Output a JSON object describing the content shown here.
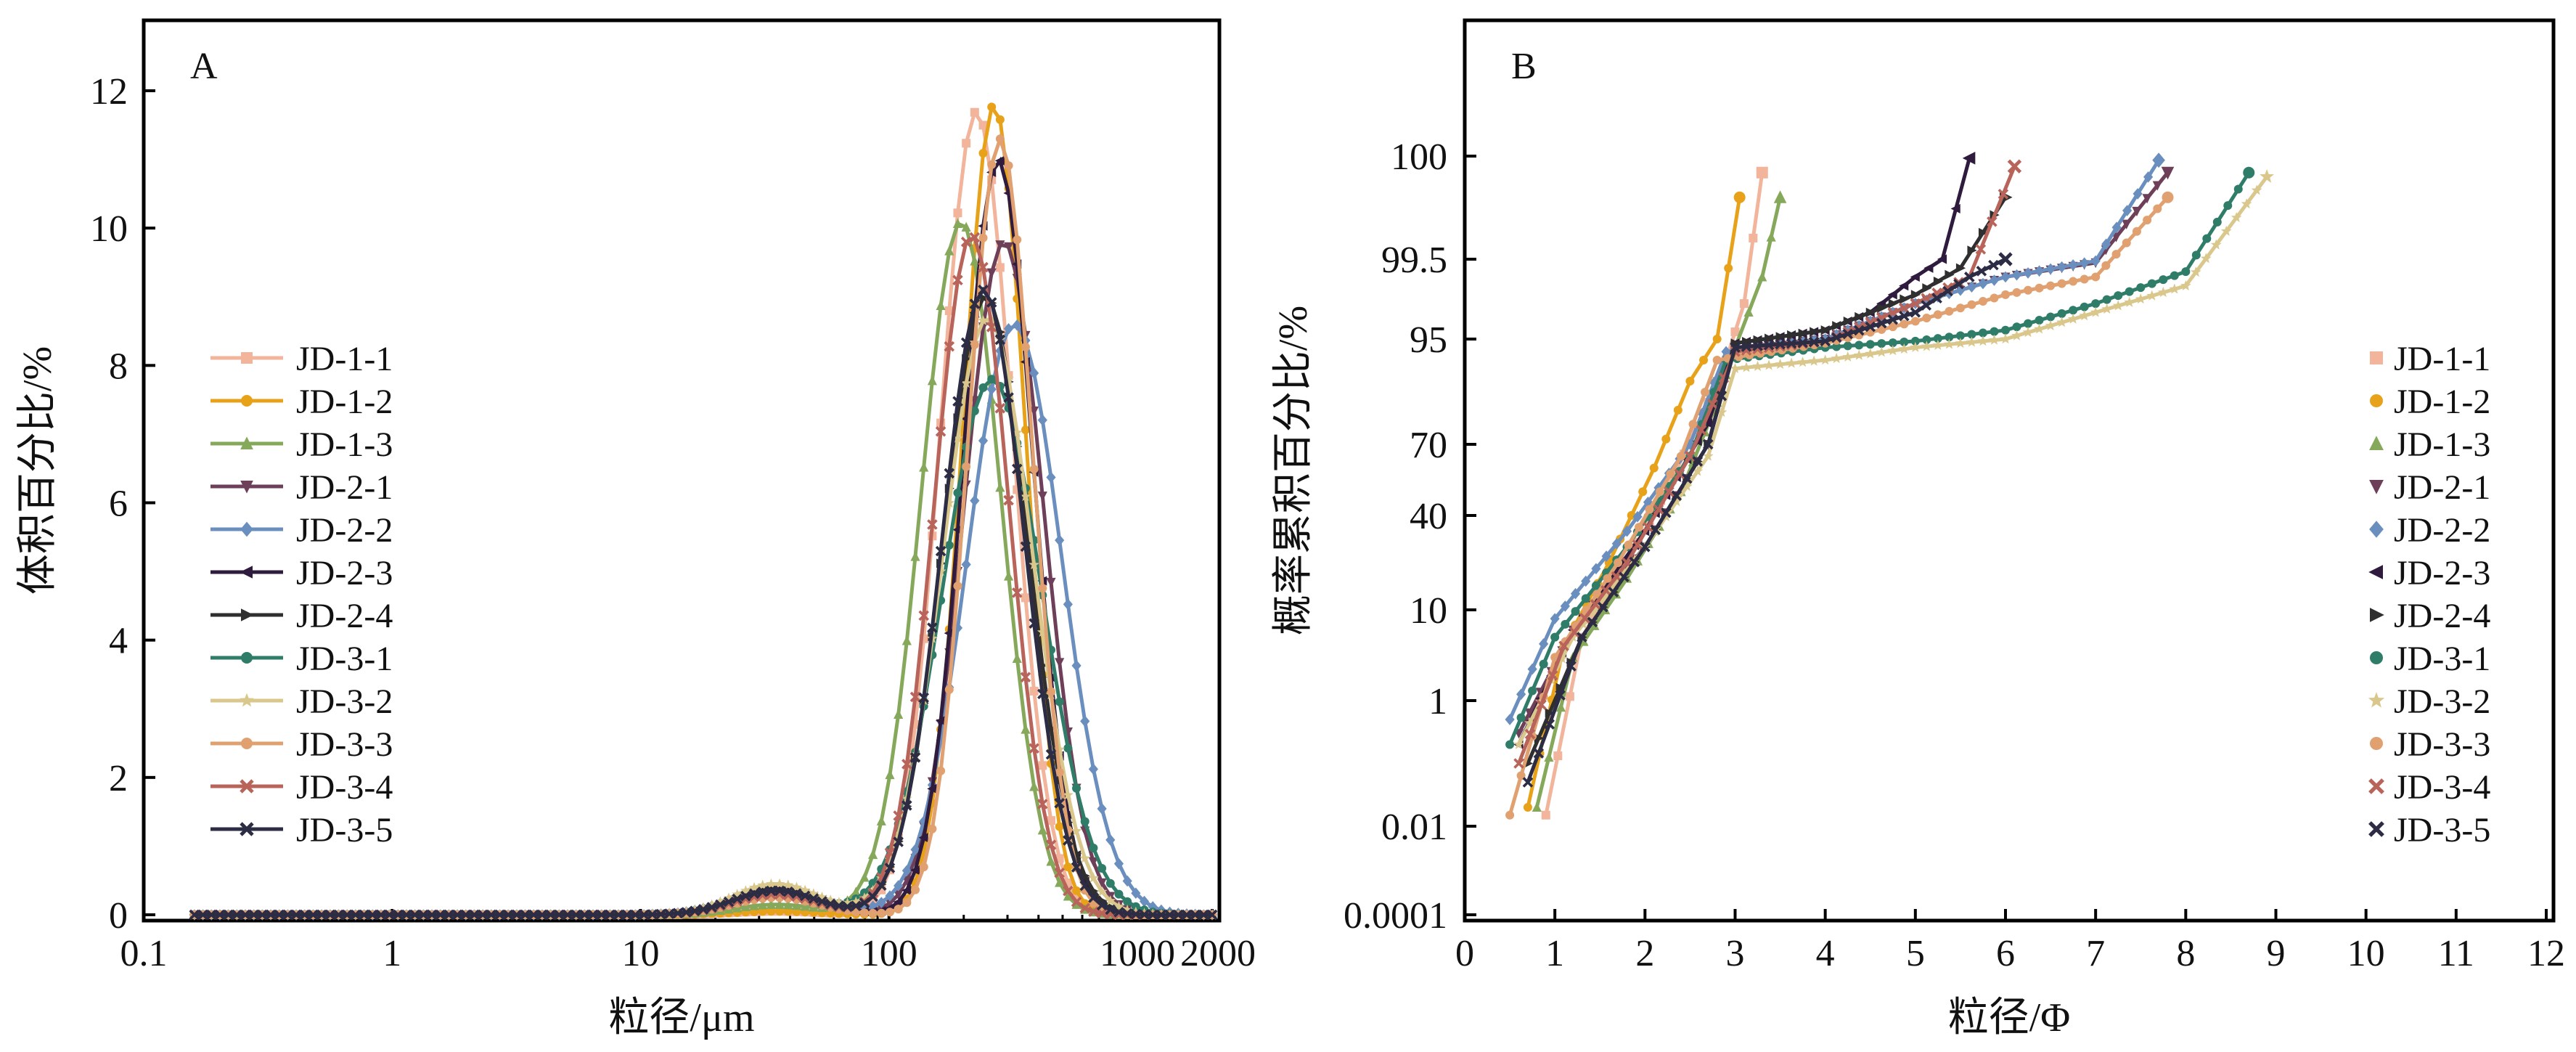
{
  "panel_a": {
    "label": "A",
    "xlabel": "粒径/μm",
    "ylabel": "体积百分比/%",
    "x_ticks": [
      "0.1",
      "1",
      "10",
      "100",
      "1000",
      "2000"
    ],
    "y_ticks": [
      "0",
      "2",
      "4",
      "6",
      "8",
      "10",
      "12"
    ]
  },
  "panel_b": {
    "label": "B",
    "xlabel": "粒径/Φ",
    "ylabel": "概率累积百分比/%",
    "x_ticks": [
      "0",
      "1",
      "2",
      "3",
      "4",
      "5",
      "6",
      "7",
      "8",
      "9",
      "10",
      "11",
      "12"
    ],
    "y_ticks": [
      "0.0001",
      "0.01",
      "1",
      "10",
      "40",
      "70",
      "95",
      "99.5",
      "100"
    ]
  },
  "colors": {
    "JD-1-1": "#f2b49b",
    "JD-1-2": "#e8a21a",
    "JD-1-3": "#86a85a",
    "JD-2-1": "#6e3f58",
    "JD-2-2": "#6a8fbf",
    "JD-2-3": "#2f1b3d",
    "JD-2-4": "#2f2f2f",
    "JD-3-1": "#2f7d68",
    "JD-3-2": "#d9c78c",
    "JD-3-3": "#e0a070",
    "JD-3-4": "#b9645a",
    "JD-3-5": "#2c2c44"
  },
  "chart_data": [
    {
      "type": "line",
      "panel": "A",
      "xlabel": "粒径/μm",
      "ylabel": "体积百分比/%",
      "x_scale": "log",
      "xlim": [
        0.1,
        2000
      ],
      "ylim": [
        0,
        13
      ],
      "legend": "left",
      "series": [
        {
          "name": "JD-1-1",
          "marker": "square",
          "peak_x": 225,
          "peak_y": 11.7,
          "sigma": 0.145,
          "bump": 0.05
        },
        {
          "name": "JD-1-2",
          "marker": "circle",
          "peak_x": 265,
          "peak_y": 11.8,
          "sigma": 0.125,
          "bump": 0.05
        },
        {
          "name": "JD-1-3",
          "marker": "triangle",
          "peak_x": 195,
          "peak_y": 10.1,
          "sigma": 0.16,
          "bump": 0.15
        },
        {
          "name": "JD-2-1",
          "marker": "triangle-down",
          "peak_x": 290,
          "peak_y": 9.8,
          "sigma": 0.16,
          "bump": 0.3
        },
        {
          "name": "JD-2-2",
          "marker": "diamond",
          "peak_x": 320,
          "peak_y": 8.6,
          "sigma": 0.19,
          "bump": 0.4
        },
        {
          "name": "JD-2-3",
          "marker": "triangle-left",
          "peak_x": 275,
          "peak_y": 11.0,
          "sigma": 0.14,
          "bump": 0.4
        },
        {
          "name": "JD-2-4",
          "marker": "triangle-right",
          "peak_x": 245,
          "peak_y": 9.0,
          "sigma": 0.17,
          "bump": 0.35
        },
        {
          "name": "JD-3-1",
          "marker": "circle",
          "peak_x": 260,
          "peak_y": 7.8,
          "sigma": 0.2,
          "bump": 0.3
        },
        {
          "name": "JD-3-2",
          "marker": "star",
          "peak_x": 250,
          "peak_y": 8.7,
          "sigma": 0.18,
          "bump": 0.45
        },
        {
          "name": "JD-3-3",
          "marker": "circle",
          "peak_x": 280,
          "peak_y": 11.3,
          "sigma": 0.13,
          "bump": 0.25
        },
        {
          "name": "JD-3-4",
          "marker": "x",
          "peak_x": 215,
          "peak_y": 9.9,
          "sigma": 0.15,
          "bump": 0.3
        },
        {
          "name": "JD-3-5",
          "marker": "x",
          "peak_x": 240,
          "peak_y": 9.1,
          "sigma": 0.165,
          "bump": 0.35
        }
      ]
    },
    {
      "type": "line",
      "panel": "B",
      "xlabel": "粒径/Φ",
      "ylabel": "概率累积百分比/%",
      "xlim": [
        0,
        12
      ],
      "y_scale": "probability",
      "legend": "right",
      "series": [
        {
          "name": "JD-1-1",
          "marker": "square",
          "points": [
            [
              0.9,
              0.015
            ],
            [
              1.3,
              5
            ],
            [
              1.8,
              25
            ],
            [
              2.3,
              55
            ],
            [
              2.7,
              80
            ],
            [
              2.9,
              90
            ],
            [
              3.1,
              97
            ],
            [
              3.3,
              99.92
            ]
          ]
        },
        {
          "name": "JD-1-2",
          "marker": "circle",
          "points": [
            [
              0.7,
              0.02
            ],
            [
              1.1,
              4
            ],
            [
              1.6,
              25
            ],
            [
              2.1,
              60
            ],
            [
              2.5,
              85
            ],
            [
              2.8,
              95
            ],
            [
              3.05,
              99.8
            ]
          ]
        },
        {
          "name": "JD-1-3",
          "marker": "triangle",
          "points": [
            [
              0.8,
              0.02
            ],
            [
              1.2,
              3
            ],
            [
              1.8,
              20
            ],
            [
              2.4,
              50
            ],
            [
              2.8,
              80
            ],
            [
              3.0,
              93
            ],
            [
              3.3,
              98.5
            ],
            [
              3.5,
              99.8
            ]
          ]
        },
        {
          "name": "JD-2-1",
          "marker": "triangle-down",
          "points": [
            [
              0.6,
              0.3
            ],
            [
              1.2,
              6
            ],
            [
              2.0,
              30
            ],
            [
              2.7,
              70
            ],
            [
              3.0,
              93
            ],
            [
              4.0,
              95
            ],
            [
              5.0,
              97
            ],
            [
              6.0,
              98.5
            ],
            [
              7.0,
              99.3
            ],
            [
              7.8,
              99.92
            ]
          ]
        },
        {
          "name": "JD-2-2",
          "marker": "diamond",
          "points": [
            [
              0.5,
              0.5
            ],
            [
              1.0,
              8
            ],
            [
              1.8,
              35
            ],
            [
              2.5,
              70
            ],
            [
              2.9,
              92
            ],
            [
              4.0,
              95
            ],
            [
              5.0,
              97
            ],
            [
              6.0,
              98.5
            ],
            [
              7.0,
              99.4
            ],
            [
              7.7,
              99.98
            ]
          ]
        },
        {
          "name": "JD-2-3",
          "marker": "triangle-left",
          "points": [
            [
              0.6,
              0.2
            ],
            [
              1.2,
              6
            ],
            [
              2.0,
              35
            ],
            [
              2.7,
              75
            ],
            [
              3.0,
              94
            ],
            [
              4.0,
              95.5
            ],
            [
              4.5,
              96.5
            ],
            [
              5.0,
              98.5
            ],
            [
              5.3,
              99.5
            ],
            [
              5.6,
              99.99
            ]
          ]
        },
        {
          "name": "JD-2-4",
          "marker": "triangle-right",
          "points": [
            [
              0.7,
              0.1
            ],
            [
              1.3,
              5
            ],
            [
              2.0,
              30
            ],
            [
              2.7,
              70
            ],
            [
              3.0,
              94
            ],
            [
              4.0,
              95.5
            ],
            [
              5.0,
              97.5
            ],
            [
              5.5,
              99
            ],
            [
              6.0,
              99.8
            ]
          ]
        },
        {
          "name": "JD-3-1",
          "marker": "circle",
          "points": [
            [
              0.5,
              0.2
            ],
            [
              1.0,
              5
            ],
            [
              1.8,
              30
            ],
            [
              2.5,
              65
            ],
            [
              2.9,
              90
            ],
            [
              4.0,
              93
            ],
            [
              5.0,
              94.5
            ],
            [
              6.0,
              95.5
            ],
            [
              7.0,
              97
            ],
            [
              8.0,
              98.8
            ],
            [
              8.7,
              99.92
            ]
          ]
        },
        {
          "name": "JD-3-2",
          "marker": "star",
          "points": [
            [
              0.6,
              0.2
            ],
            [
              1.2,
              5
            ],
            [
              2.0,
              30
            ],
            [
              2.7,
              65
            ],
            [
              3.0,
              88
            ],
            [
              4.0,
              90
            ],
            [
              5.0,
              93
            ],
            [
              6.0,
              95
            ],
            [
              7.0,
              96.5
            ],
            [
              8.0,
              98
            ],
            [
              8.9,
              99.9
            ]
          ]
        },
        {
          "name": "JD-3-3",
          "marker": "circle",
          "points": [
            [
              0.5,
              0.015
            ],
            [
              1.0,
              3
            ],
            [
              1.7,
              25
            ],
            [
              2.4,
              65
            ],
            [
              2.8,
              90
            ],
            [
              4.0,
              94
            ],
            [
              5.0,
              96
            ],
            [
              6.0,
              97.5
            ],
            [
              7.0,
              98.5
            ],
            [
              7.8,
              99.8
            ]
          ]
        },
        {
          "name": "JD-3-4",
          "marker": "x",
          "points": [
            [
              0.6,
              0.1
            ],
            [
              1.1,
              4
            ],
            [
              1.8,
              25
            ],
            [
              2.5,
              65
            ],
            [
              3.0,
              92
            ],
            [
              4.0,
              94.5
            ],
            [
              5.0,
              97
            ],
            [
              5.6,
              98.5
            ],
            [
              6.1,
              99.95
            ]
          ]
        },
        {
          "name": "JD-3-5",
          "marker": "x",
          "points": [
            [
              0.7,
              0.05
            ],
            [
              1.3,
              5
            ],
            [
              2.0,
              30
            ],
            [
              2.7,
              70
            ],
            [
              3.0,
              93
            ],
            [
              4.0,
              94.5
            ],
            [
              5.0,
              96.5
            ],
            [
              5.6,
              98.5
            ],
            [
              6.0,
              99.5
            ]
          ]
        }
      ]
    }
  ]
}
